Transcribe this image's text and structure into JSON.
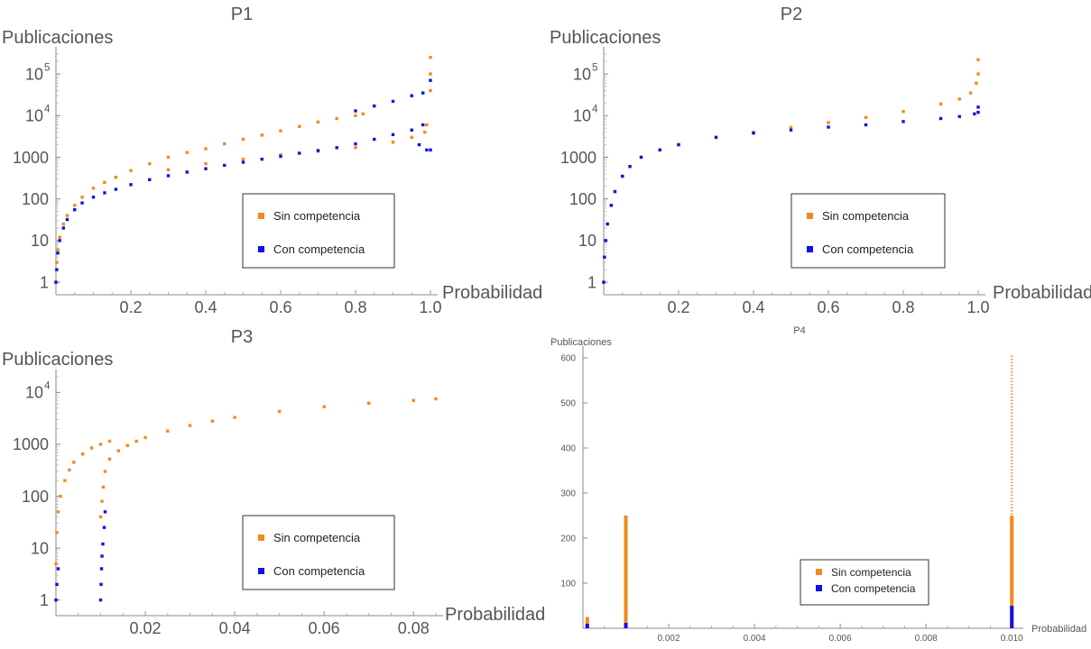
{
  "colors": {
    "orange": "#F28A1E",
    "blue": "#1010E8",
    "axis": "#555555",
    "text": "#555555"
  },
  "chart_data": [
    {
      "type": "scatter",
      "title": "P1",
      "ylabel": "Publicaciones",
      "xlabel": "Probabilidad",
      "xlim": [
        0,
        1.0
      ],
      "yscale": "log",
      "ylim": [
        0.5,
        300000
      ],
      "xticks": [
        {
          "v": 0.2,
          "label": "0.2"
        },
        {
          "v": 0.4,
          "label": "0.4"
        },
        {
          "v": 0.6,
          "label": "0.6"
        },
        {
          "v": 0.8,
          "label": "0.8"
        },
        {
          "v": 1.0,
          "label": "1.0"
        }
      ],
      "yticks": [
        {
          "v": 1,
          "label": "1"
        },
        {
          "v": 10,
          "label": "10"
        },
        {
          "v": 100,
          "label": "100"
        },
        {
          "v": 1000,
          "label": "1000"
        },
        {
          "v": 10000,
          "label": "10",
          "sup": "4"
        },
        {
          "v": 100000,
          "label": "10",
          "sup": "5"
        }
      ],
      "legend": {
        "placement": "right",
        "entries": [
          "Sin competencia",
          "Con competencia"
        ]
      },
      "series": [
        {
          "name": "Sin competencia",
          "color": "orange",
          "x": [
            0.0,
            0.002,
            0.005,
            0.01,
            0.02,
            0.03,
            0.05,
            0.07,
            0.1,
            0.13,
            0.16,
            0.2,
            0.25,
            0.3,
            0.35,
            0.4,
            0.45,
            0.5,
            0.55,
            0.6,
            0.65,
            0.7,
            0.75,
            0.8,
            0.82,
            0.3,
            0.4,
            0.5,
            0.6,
            0.7,
            0.8,
            0.9,
            0.95,
            0.985,
            0.99,
            1.0,
            1.0,
            1.0
          ],
          "y": [
            1,
            3,
            6,
            12,
            25,
            40,
            70,
            110,
            180,
            250,
            330,
            480,
            700,
            1000,
            1300,
            1600,
            2100,
            2700,
            3400,
            4300,
            5500,
            7000,
            8500,
            10000,
            11000,
            500,
            700,
            900,
            1150,
            1400,
            1700,
            2300,
            3000,
            4000,
            6000,
            40000,
            100000,
            250000
          ]
        },
        {
          "name": "Con competencia",
          "color": "blue",
          "x": [
            0.0,
            0.002,
            0.005,
            0.01,
            0.02,
            0.03,
            0.05,
            0.07,
            0.1,
            0.13,
            0.16,
            0.2,
            0.25,
            0.3,
            0.35,
            0.4,
            0.45,
            0.5,
            0.55,
            0.6,
            0.65,
            0.7,
            0.75,
            0.8,
            0.85,
            0.9,
            0.95,
            0.98,
            0.97,
            0.99,
            1.0,
            1.0,
            0.8,
            0.85,
            0.9,
            0.95,
            0.98
          ],
          "y": [
            1,
            2,
            5,
            10,
            20,
            32,
            55,
            80,
            110,
            140,
            170,
            220,
            290,
            360,
            440,
            530,
            640,
            760,
            900,
            1050,
            1250,
            1450,
            1700,
            2100,
            2700,
            3500,
            4500,
            6000,
            2000,
            1500,
            1500,
            70000,
            13000,
            17000,
            22000,
            30000,
            35000
          ]
        }
      ]
    },
    {
      "type": "scatter",
      "title": "P2",
      "ylabel": "Publicaciones",
      "xlabel": "Probabilidad",
      "xlim": [
        0,
        1.0
      ],
      "yscale": "log",
      "ylim": [
        0.5,
        300000
      ],
      "xticks": [
        {
          "v": 0.2,
          "label": "0.2"
        },
        {
          "v": 0.4,
          "label": "0.4"
        },
        {
          "v": 0.6,
          "label": "0.6"
        },
        {
          "v": 0.8,
          "label": "0.8"
        },
        {
          "v": 1.0,
          "label": "1.0"
        }
      ],
      "yticks": [
        {
          "v": 1,
          "label": "1"
        },
        {
          "v": 10,
          "label": "10"
        },
        {
          "v": 100,
          "label": "100"
        },
        {
          "v": 1000,
          "label": "1000"
        },
        {
          "v": 10000,
          "label": "10",
          "sup": "4"
        },
        {
          "v": 100000,
          "label": "10",
          "sup": "5"
        }
      ],
      "legend": {
        "placement": "right",
        "entries": [
          "Sin competencia",
          "Con competencia"
        ]
      },
      "series": [
        {
          "name": "Sin competencia",
          "color": "orange",
          "x": [
            0.0,
            0.002,
            0.005,
            0.01,
            0.02,
            0.03,
            0.05,
            0.07,
            0.1,
            0.15,
            0.2,
            0.3,
            0.4,
            0.5,
            0.6,
            0.7,
            0.8,
            0.9,
            0.95,
            0.98,
            0.995,
            1.0,
            1.0
          ],
          "y": [
            1,
            4,
            10,
            25,
            70,
            150,
            350,
            600,
            1000,
            1500,
            2000,
            3000,
            4000,
            5200,
            6800,
            9000,
            12500,
            19000,
            25000,
            35000,
            60000,
            100000,
            220000
          ]
        },
        {
          "name": "Con competencia",
          "color": "blue",
          "x": [
            0.0,
            0.002,
            0.005,
            0.01,
            0.02,
            0.03,
            0.05,
            0.07,
            0.1,
            0.15,
            0.2,
            0.3,
            0.4,
            0.5,
            0.6,
            0.7,
            0.8,
            0.9,
            0.95,
            0.99,
            1.0,
            1.0
          ],
          "y": [
            1,
            4,
            10,
            25,
            70,
            150,
            350,
            600,
            1000,
            1500,
            2000,
            3000,
            3800,
            4500,
            5300,
            6000,
            7200,
            8500,
            9500,
            11000,
            12000,
            16000
          ]
        }
      ]
    },
    {
      "type": "scatter",
      "title": "P3",
      "ylabel": "Publicaciones",
      "xlabel": "Probabilidad",
      "xlim": [
        0,
        0.085
      ],
      "yscale": "log",
      "ylim": [
        0.5,
        20000
      ],
      "xticks": [
        {
          "v": 0.02,
          "label": "0.02"
        },
        {
          "v": 0.04,
          "label": "0.04"
        },
        {
          "v": 0.06,
          "label": "0.06"
        },
        {
          "v": 0.08,
          "label": "0.08"
        }
      ],
      "yticks": [
        {
          "v": 1,
          "label": "1"
        },
        {
          "v": 10,
          "label": "10"
        },
        {
          "v": 100,
          "label": "100"
        },
        {
          "v": 1000,
          "label": "1000"
        },
        {
          "v": 10000,
          "label": "10",
          "sup": "4"
        }
      ],
      "legend": {
        "placement": "right",
        "entries": [
          "Sin competencia",
          "Con competencia"
        ]
      },
      "series": [
        {
          "name": "Sin competencia",
          "color": "orange",
          "x": [
            0.0,
            0.0002,
            0.0005,
            0.001,
            0.002,
            0.003,
            0.004,
            0.006,
            0.008,
            0.01,
            0.012,
            0.01,
            0.0103,
            0.0106,
            0.011,
            0.012,
            0.014,
            0.016,
            0.018,
            0.02,
            0.025,
            0.03,
            0.035,
            0.04,
            0.05,
            0.06,
            0.07,
            0.08,
            0.085
          ],
          "y": [
            5,
            20,
            50,
            100,
            200,
            320,
            450,
            650,
            850,
            1000,
            1150,
            40,
            80,
            150,
            300,
            520,
            750,
            950,
            1150,
            1350,
            1800,
            2300,
            2800,
            3300,
            4300,
            5300,
            6200,
            7000,
            7500
          ]
        },
        {
          "name": "Con competencia",
          "color": "blue",
          "x": [
            0.0,
            0.0002,
            0.0005,
            0.01,
            0.0101,
            0.0102,
            0.0103,
            0.0105,
            0.0108,
            0.011
          ],
          "y": [
            1,
            2,
            4,
            1,
            2,
            4,
            7,
            12,
            25,
            50
          ]
        }
      ]
    },
    {
      "type": "scatter",
      "title": "P4",
      "ylabel": "Publicaciones",
      "xlabel": "Probabilidad",
      "xlim": [
        0,
        0.0101
      ],
      "yscale": "linear",
      "ylim": [
        0,
        610
      ],
      "xticks": [
        {
          "v": 0.002,
          "label": "0.002"
        },
        {
          "v": 0.004,
          "label": "0.004"
        },
        {
          "v": 0.006,
          "label": "0.006"
        },
        {
          "v": 0.008,
          "label": "0.008"
        },
        {
          "v": 0.01,
          "label": "0.010"
        }
      ],
      "yticks": [
        {
          "v": 100,
          "label": "100"
        },
        {
          "v": 200,
          "label": "200"
        },
        {
          "v": 300,
          "label": "300"
        },
        {
          "v": 400,
          "label": "400"
        },
        {
          "v": 500,
          "label": "500"
        },
        {
          "v": 600,
          "label": "600"
        }
      ],
      "legend": {
        "placement": "bottom-right",
        "entries": [
          "Sin competencia",
          "Con competencia"
        ]
      },
      "series": [
        {
          "name": "Sin competencia",
          "color": "orange",
          "bars": [
            {
              "x": 0.0001,
              "from": 0,
              "to": 25,
              "dense": true
            },
            {
              "x": 0.001,
              "from": 0,
              "to": 250,
              "dense": true
            },
            {
              "x": 0.01,
              "from": 0,
              "to": 250,
              "dense": true
            },
            {
              "x": 0.01,
              "from": 250,
              "to": 605,
              "dense": false
            }
          ]
        },
        {
          "name": "Con competencia",
          "color": "blue",
          "bars": [
            {
              "x": 0.0001,
              "from": 0,
              "to": 10,
              "dense": true
            },
            {
              "x": 0.001,
              "from": 0,
              "to": 12,
              "dense": true
            },
            {
              "x": 0.01,
              "from": 0,
              "to": 50,
              "dense": true
            }
          ]
        }
      ]
    }
  ]
}
